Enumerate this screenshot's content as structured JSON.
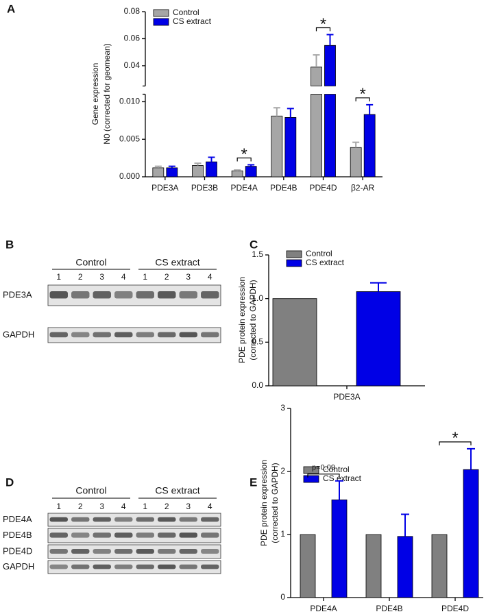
{
  "panel_labels": [
    "A",
    "B",
    "C",
    "D",
    "E"
  ],
  "blots": [
    {
      "groups": [
        "Control",
        "CS extract"
      ],
      "lanes": [
        "1",
        "2",
        "3",
        "4",
        "1",
        "2",
        "3",
        "4"
      ],
      "rows": [
        "PDE3A",
        "GAPDH"
      ]
    },
    {
      "groups": [
        "Control",
        "CS extract"
      ],
      "lanes": [
        "1",
        "2",
        "3",
        "4",
        "1",
        "2",
        "3",
        "4"
      ],
      "rows": [
        "PDE4A",
        "PDE4B",
        "PDE4D",
        "GAPDH"
      ]
    }
  ],
  "chart_data": [
    {
      "type": "bar",
      "ylabel": [
        "Gene expression",
        "N0 (corrected for geomean)"
      ],
      "categories": [
        "PDE3A",
        "PDE3B",
        "PDE4A",
        "PDE4B",
        "PDE4D",
        "β2-AR"
      ],
      "series": [
        {
          "name": "Control",
          "color": "#a6a6a6",
          "values": [
            0.0012,
            0.0015,
            0.0008,
            0.0081,
            0.039,
            0.0039
          ],
          "errors": [
            0.0002,
            0.0003,
            0.0001,
            0.0011,
            0.009,
            0.0007
          ]
        },
        {
          "name": "CS extract",
          "color": "#0000e6",
          "values": [
            0.0012,
            0.002,
            0.0014,
            0.0079,
            0.055,
            0.0083
          ],
          "errors": [
            0.0002,
            0.0006,
            0.0002,
            0.0012,
            0.008,
            0.0013
          ]
        }
      ],
      "ylim": [
        0,
        0.08
      ],
      "ybreak": [
        0.011,
        0.025
      ],
      "yticks": [
        {
          "value": 0,
          "label": "0.000"
        },
        0.005,
        {
          "value": 0.01,
          "label": "0.010"
        },
        0.04,
        0.06,
        0.08
      ],
      "annotations": [
        {
          "text": "*",
          "category": "PDE4A"
        },
        {
          "text": "*",
          "category": "PDE4D"
        },
        {
          "text": "*",
          "category": "β2-AR"
        }
      ]
    },
    {
      "type": "bar",
      "ylabel": [
        "PDE protein expression",
        "(corrected to GAPDH)"
      ],
      "categories": [
        "PDE3A"
      ],
      "series": [
        {
          "name": "Control",
          "color": "#808080",
          "values": [
            1.0
          ],
          "errors": [
            null
          ]
        },
        {
          "name": "CS extract",
          "color": "#0000e6",
          "values": [
            1.08
          ],
          "errors": [
            0.1
          ]
        }
      ],
      "ylim": [
        0,
        1.5
      ],
      "yticks": [
        {
          "value": 0,
          "label": "0.0"
        },
        0.5,
        {
          "value": 1,
          "label": "1.0"
        },
        1.5
      ],
      "annotations": []
    },
    {
      "type": "bar",
      "ylabel": [
        "PDE protein expression",
        "(corrected to GAPDH)"
      ],
      "categories": [
        "PDE4A",
        "PDE4B",
        "PDE4D"
      ],
      "series": [
        {
          "name": "Control",
          "color": "#808080",
          "values": [
            1,
            1,
            1
          ],
          "errors": [
            null,
            null,
            null
          ]
        },
        {
          "name": "CS extract",
          "color": "#0000e6",
          "values": [
            1.55,
            0.97,
            2.03
          ],
          "errors": [
            0.3,
            0.35,
            0.33
          ]
        }
      ],
      "ylim": [
        0,
        3
      ],
      "yticks": [
        0,
        1,
        2,
        3
      ],
      "annotations": [
        {
          "text": "p=0.09",
          "category": "PDE4A"
        },
        {
          "text": "*",
          "category": "PDE4D"
        }
      ]
    }
  ]
}
